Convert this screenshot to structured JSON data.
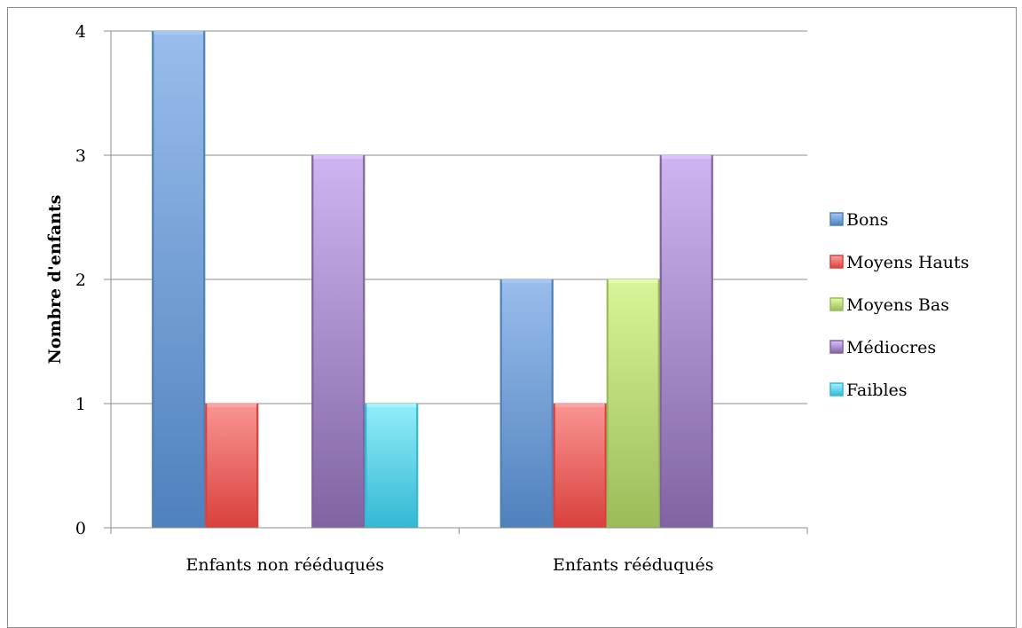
{
  "chart_data": {
    "type": "bar",
    "categories": [
      "Enfants non rééduqués",
      "Enfants rééduqués"
    ],
    "series": [
      {
        "name": "Bons",
        "values": [
          4,
          2
        ],
        "color": "#4f81bd",
        "light": "#a6c8f5"
      },
      {
        "name": "Moyens Hauts",
        "values": [
          1,
          1
        ],
        "color": "#d9413b",
        "light": "#ffa3a3"
      },
      {
        "name": "Moyens Bas",
        "values": [
          0,
          2
        ],
        "color": "#9bbb59",
        "light": "#e3ffa3"
      },
      {
        "name": "Médiocres",
        "values": [
          3,
          3
        ],
        "color": "#8064a2",
        "light": "#dcc3ff"
      },
      {
        "name": "Faibles",
        "values": [
          1,
          0
        ],
        "color": "#33b8d4",
        "light": "#a3f6ff"
      }
    ],
    "ylabel": "Nombre d'enfants",
    "xlabel": "",
    "ylim": [
      0,
      4
    ],
    "yticks": [
      "0",
      "1",
      "2",
      "3",
      "4"
    ],
    "grid": true,
    "legend_position": "right"
  }
}
